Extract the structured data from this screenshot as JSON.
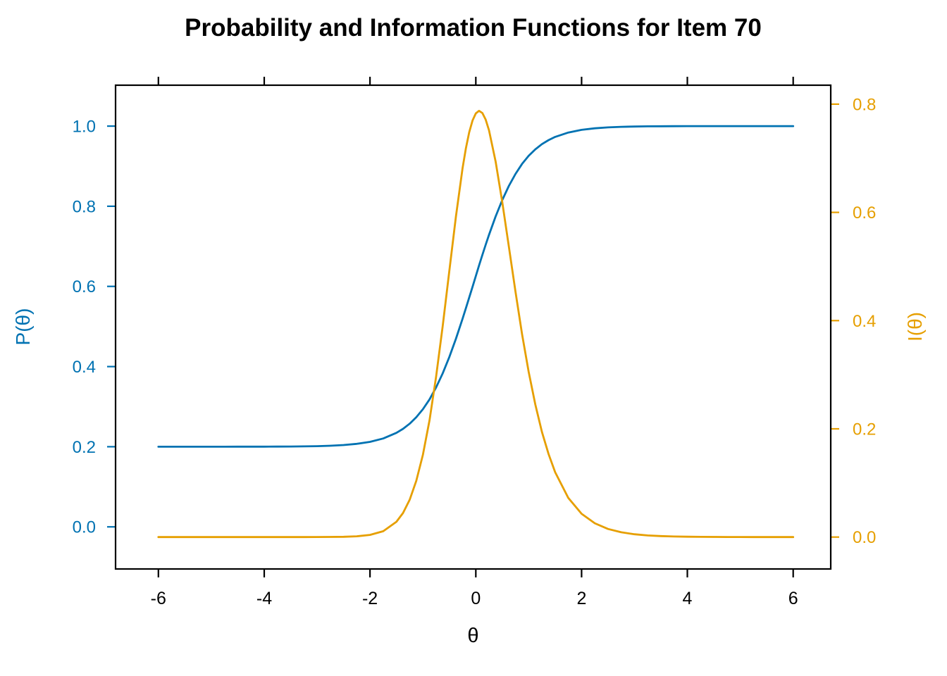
{
  "page": {
    "background": "#ffffff"
  },
  "chart_data": {
    "type": "line",
    "title": "Probability and Information Functions for Item 70",
    "xlabel": "θ",
    "legend": "none",
    "grid": false,
    "x_axis": {
      "ticks": [
        -6,
        -4,
        -2,
        0,
        2,
        4,
        6
      ],
      "tick_labels": [
        "-6",
        "-4",
        "-2",
        "0",
        "2",
        "4",
        "6"
      ],
      "range": [
        -6.81,
        6.71
      ],
      "color": "#000000",
      "mirrored_top_ticks": true
    },
    "left_axis": {
      "label": "P(θ)",
      "ticks": [
        0,
        0.2,
        0.4,
        0.6,
        0.8,
        1.0
      ],
      "tick_labels": [
        "0.0",
        "0.2",
        "0.4",
        "0.6",
        "0.8",
        "1.0"
      ],
      "range": [
        -0.105,
        1.102
      ],
      "color": "#0072B2"
    },
    "right_axis": {
      "label": "I(θ)",
      "ticks": [
        0,
        0.2,
        0.4,
        0.6,
        0.8
      ],
      "tick_labels": [
        "0.0",
        "0.2",
        "0.4",
        "0.6",
        "0.8"
      ],
      "range": [
        -0.059,
        0.835
      ],
      "color": "#E69F00"
    },
    "series": [
      {
        "name": "probability",
        "label": "P(θ)",
        "axis": "left",
        "color": "#0072B2",
        "theta": [
          -6,
          -5.75,
          -5.5,
          -5.25,
          -5,
          -4.75,
          -4.5,
          -4.25,
          -4,
          -3.75,
          -3.5,
          -3.25,
          -3,
          -2.75,
          -2.5,
          -2.25,
          -2,
          -1.75,
          -1.5,
          -1.375,
          -1.25,
          -1.125,
          -1,
          -0.875,
          -0.75,
          -0.625,
          -0.5,
          -0.375,
          -0.25,
          -0.1875,
          -0.125,
          -0.0625,
          0,
          0.0625,
          0.125,
          0.1875,
          0.25,
          0.375,
          0.5,
          0.625,
          0.75,
          0.875,
          1,
          1.125,
          1.25,
          1.375,
          1.5,
          1.75,
          2,
          2.25,
          2.5,
          2.75,
          3,
          3.25,
          3.5,
          3.75,
          4,
          4.25,
          4.5,
          4.75,
          5,
          5.25,
          5.5,
          5.75,
          6
        ],
        "values": [
          0.2,
          0.2,
          0.2,
          0.2,
          0.2,
          0.2,
          0.2001,
          0.2001,
          0.2002,
          0.2003,
          0.2005,
          0.2008,
          0.2014,
          0.2025,
          0.2042,
          0.2072,
          0.2122,
          0.2206,
          0.2346,
          0.2446,
          0.2575,
          0.2736,
          0.2936,
          0.3181,
          0.3479,
          0.3831,
          0.4238,
          0.4695,
          0.5194,
          0.5455,
          0.5721,
          0.5989,
          0.6258,
          0.6524,
          0.6785,
          0.704,
          0.7286,
          0.7745,
          0.8154,
          0.8508,
          0.8807,
          0.9055,
          0.9257,
          0.9419,
          0.9549,
          0.965,
          0.973,
          0.984,
          0.9906,
          0.9945,
          0.9968,
          0.9981,
          0.9989,
          0.9994,
          0.9996,
          0.9998,
          0.9999,
          0.9999,
          1,
          1,
          1,
          1,
          1,
          1,
          1
        ]
      },
      {
        "name": "information",
        "label": "I(θ)",
        "axis": "right",
        "color": "#E69F00",
        "theta": [
          -6,
          -5.75,
          -5.5,
          -5.25,
          -5,
          -4.75,
          -4.5,
          -4.25,
          -4,
          -3.75,
          -3.5,
          -3.25,
          -3,
          -2.75,
          -2.5,
          -2.25,
          -2,
          -1.75,
          -1.5,
          -1.375,
          -1.25,
          -1.125,
          -1,
          -0.875,
          -0.75,
          -0.625,
          -0.5,
          -0.375,
          -0.25,
          -0.1875,
          -0.125,
          -0.0625,
          0,
          0.0625,
          0.125,
          0.1875,
          0.25,
          0.375,
          0.5,
          0.625,
          0.75,
          0.875,
          1,
          1.125,
          1.25,
          1.375,
          1.5,
          1.75,
          2,
          2.25,
          2.5,
          2.75,
          3,
          3.25,
          3.5,
          3.75,
          4,
          4.25,
          4.5,
          4.75,
          5,
          5.25,
          5.5,
          5.75,
          6
        ],
        "values": [
          0,
          0,
          0,
          0,
          0,
          0,
          0,
          0,
          0,
          0,
          0,
          0,
          0.0001,
          0.0002,
          0.0005,
          0.0014,
          0.004,
          0.0108,
          0.0282,
          0.0444,
          0.0688,
          0.1039,
          0.1521,
          0.2159,
          0.2961,
          0.3899,
          0.4918,
          0.5927,
          0.6818,
          0.7184,
          0.748,
          0.7697,
          0.783,
          0.7876,
          0.7836,
          0.7714,
          0.7517,
          0.694,
          0.6193,
          0.5366,
          0.4533,
          0.375,
          0.3053,
          0.2451,
          0.1944,
          0.1535,
          0.1198,
          0.0722,
          0.043,
          0.0254,
          0.0149,
          0.0088,
          0.0051,
          0.003,
          0.0018,
          0.001,
          0.0006,
          0.0003,
          0.0002,
          0.0001,
          0.0001,
          0,
          0,
          0,
          0
        ]
      }
    ]
  }
}
